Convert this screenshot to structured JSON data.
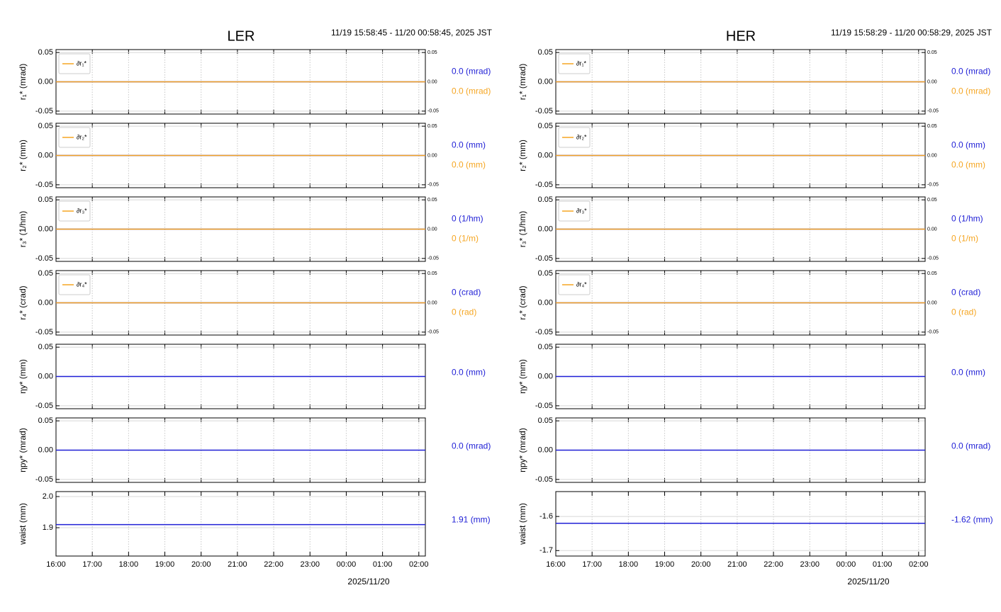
{
  "chart_data": [
    {
      "type": "line",
      "title": "LER",
      "subtitle": "11/19 15:58:45 - 11/20 00:58:45, 2025 JST",
      "xlabel": "2025/11/20",
      "xlim": [
        16,
        26.18
      ],
      "xticks": [
        {
          "value": 16,
          "label": "16:00"
        },
        {
          "value": 17,
          "label": "17:00"
        },
        {
          "value": 18,
          "label": "18:00"
        },
        {
          "value": 19,
          "label": "19:00"
        },
        {
          "value": 20,
          "label": "20:00"
        },
        {
          "value": 21,
          "label": "21:00"
        },
        {
          "value": 22,
          "label": "22:00"
        },
        {
          "value": 23,
          "label": "23:00"
        },
        {
          "value": 24,
          "label": "00:00"
        },
        {
          "value": 25,
          "label": "01:00"
        },
        {
          "value": 26,
          "label": "02:00"
        }
      ],
      "grid": true,
      "legend": "upper left",
      "panels": [
        {
          "ylabel": "r₁* (mrad)",
          "ylim": [
            -0.055,
            0.055
          ],
          "yticks": [
            -0.05,
            {
              "value": 0,
              "label": "0.00"
            },
            0.05
          ],
          "y2lim": [
            -0.055,
            0.055
          ],
          "y2ticks": [
            -0.05,
            {
              "value": 0,
              "label": "0.00"
            },
            0.05
          ],
          "series": [
            {
              "color": "#1f1fd6",
              "x": [
                16,
                26.18
              ],
              "values": [
                0,
                0
              ],
              "label": "0.0 (mrad)"
            },
            {
              "name": "∂r₁*",
              "color": "#f5a623",
              "axis": "y2",
              "x": [
                16,
                26.18
              ],
              "values": [
                0,
                0
              ],
              "label": "0.0 (mrad)"
            }
          ]
        },
        {
          "ylabel": "r₂* (mm)",
          "ylim": [
            -0.055,
            0.055
          ],
          "yticks": [
            -0.05,
            {
              "value": 0,
              "label": "0.00"
            },
            0.05
          ],
          "y2lim": [
            -0.055,
            0.055
          ],
          "y2ticks": [
            -0.05,
            {
              "value": 0,
              "label": "0.00"
            },
            0.05
          ],
          "series": [
            {
              "color": "#1f1fd6",
              "x": [
                16,
                26.18
              ],
              "values": [
                0,
                0
              ],
              "label": "0.0 (mm)"
            },
            {
              "name": "∂r₂*",
              "color": "#f5a623",
              "axis": "y2",
              "x": [
                16,
                26.18
              ],
              "values": [
                0,
                0
              ],
              "label": "0.0 (mm)"
            }
          ]
        },
        {
          "ylabel": "r₃* (1/hm)",
          "ylim": [
            -0.055,
            0.055
          ],
          "yticks": [
            -0.05,
            {
              "value": 0,
              "label": "0.00"
            },
            0.05
          ],
          "y2lim": [
            -0.055,
            0.055
          ],
          "y2ticks": [
            -0.05,
            {
              "value": 0,
              "label": "0.00"
            },
            0.05
          ],
          "series": [
            {
              "color": "#1f1fd6",
              "x": [
                16,
                26.18
              ],
              "values": [
                0,
                0
              ],
              "label": "0 (1/hm)"
            },
            {
              "name": "∂r₃*",
              "color": "#f5a623",
              "axis": "y2",
              "x": [
                16,
                26.18
              ],
              "values": [
                0,
                0
              ],
              "label": "0 (1/m)"
            }
          ]
        },
        {
          "ylabel": "r₄* (crad)",
          "ylim": [
            -0.055,
            0.055
          ],
          "yticks": [
            -0.05,
            {
              "value": 0,
              "label": "0.00"
            },
            0.05
          ],
          "y2lim": [
            -0.055,
            0.055
          ],
          "y2ticks": [
            -0.05,
            {
              "value": 0,
              "label": "0.00"
            },
            0.05
          ],
          "series": [
            {
              "color": "#1f1fd6",
              "x": [
                16,
                26.18
              ],
              "values": [
                0,
                0
              ],
              "label": "0 (crad)"
            },
            {
              "name": "∂r₄*",
              "color": "#f5a623",
              "axis": "y2",
              "x": [
                16,
                26.18
              ],
              "values": [
                0,
                0
              ],
              "label": "0 (rad)"
            }
          ]
        },
        {
          "ylabel": "ηy* (mm)",
          "ylim": [
            -0.055,
            0.055
          ],
          "yticks": [
            -0.05,
            {
              "value": 0,
              "label": "0.00"
            },
            0.05
          ],
          "series": [
            {
              "color": "#1f1fd6",
              "x": [
                16,
                26.18
              ],
              "values": [
                0,
                0
              ],
              "label": "0.0 (mm)"
            }
          ]
        },
        {
          "ylabel": "ηpy* (mrad)",
          "ylim": [
            -0.055,
            0.055
          ],
          "yticks": [
            -0.05,
            {
              "value": 0,
              "label": "0.00"
            },
            0.05
          ],
          "series": [
            {
              "color": "#1f1fd6",
              "x": [
                16,
                26.18
              ],
              "values": [
                0,
                0
              ],
              "label": "0.0 (mrad)"
            }
          ]
        },
        {
          "ylabel": "waist (mm)",
          "ylim": [
            1.809,
            2.016
          ],
          "yticks": [
            1.9,
            {
              "value": 2,
              "label": "2.0"
            }
          ],
          "series": [
            {
              "color": "#1f1fd6",
              "x": [
                16,
                26.18
              ],
              "values": [
                1.91,
                1.91
              ],
              "label": "1.91 (mm)"
            }
          ]
        }
      ]
    },
    {
      "type": "line",
      "title": "HER",
      "subtitle": "11/19 15:58:29 - 11/20 00:58:29, 2025 JST",
      "xlabel": "2025/11/20",
      "xlim": [
        16,
        26.18
      ],
      "xticks": [
        {
          "value": 16,
          "label": "16:00"
        },
        {
          "value": 17,
          "label": "17:00"
        },
        {
          "value": 18,
          "label": "18:00"
        },
        {
          "value": 19,
          "label": "19:00"
        },
        {
          "value": 20,
          "label": "20:00"
        },
        {
          "value": 21,
          "label": "21:00"
        },
        {
          "value": 22,
          "label": "22:00"
        },
        {
          "value": 23,
          "label": "23:00"
        },
        {
          "value": 24,
          "label": "00:00"
        },
        {
          "value": 25,
          "label": "01:00"
        },
        {
          "value": 26,
          "label": "02:00"
        }
      ],
      "grid": true,
      "legend": "upper left",
      "panels": [
        {
          "ylabel": "r₁* (mrad)",
          "ylim": [
            -0.055,
            0.055
          ],
          "yticks": [
            -0.05,
            {
              "value": 0,
              "label": "0.00"
            },
            0.05
          ],
          "y2lim": [
            -0.055,
            0.055
          ],
          "y2ticks": [
            -0.05,
            {
              "value": 0,
              "label": "0.00"
            },
            0.05
          ],
          "series": [
            {
              "color": "#1f1fd6",
              "x": [
                16,
                26.18
              ],
              "values": [
                0,
                0
              ],
              "label": "0.0 (mrad)"
            },
            {
              "name": "∂r₁*",
              "color": "#f5a623",
              "axis": "y2",
              "x": [
                16,
                26.18
              ],
              "values": [
                0,
                0
              ],
              "label": "0.0 (mrad)"
            }
          ]
        },
        {
          "ylabel": "r₂* (mm)",
          "ylim": [
            -0.055,
            0.055
          ],
          "yticks": [
            -0.05,
            {
              "value": 0,
              "label": "0.00"
            },
            0.05
          ],
          "y2lim": [
            -0.055,
            0.055
          ],
          "y2ticks": [
            -0.05,
            {
              "value": 0,
              "label": "0.00"
            },
            0.05
          ],
          "series": [
            {
              "color": "#1f1fd6",
              "x": [
                16,
                26.18
              ],
              "values": [
                0,
                0
              ],
              "label": "0.0 (mm)"
            },
            {
              "name": "∂r₂*",
              "color": "#f5a623",
              "axis": "y2",
              "x": [
                16,
                26.18
              ],
              "values": [
                0,
                0
              ],
              "label": "0.0 (mm)"
            }
          ]
        },
        {
          "ylabel": "r₃* (1/hm)",
          "ylim": [
            -0.055,
            0.055
          ],
          "yticks": [
            -0.05,
            {
              "value": 0,
              "label": "0.00"
            },
            0.05
          ],
          "y2lim": [
            -0.055,
            0.055
          ],
          "y2ticks": [
            -0.05,
            {
              "value": 0,
              "label": "0.00"
            },
            0.05
          ],
          "series": [
            {
              "color": "#1f1fd6",
              "x": [
                16,
                26.18
              ],
              "values": [
                0,
                0
              ],
              "label": "0 (1/hm)"
            },
            {
              "name": "∂r₃*",
              "color": "#f5a623",
              "axis": "y2",
              "x": [
                16,
                26.18
              ],
              "values": [
                0,
                0
              ],
              "label": "0 (1/m)"
            }
          ]
        },
        {
          "ylabel": "r₄* (crad)",
          "ylim": [
            -0.055,
            0.055
          ],
          "yticks": [
            -0.05,
            {
              "value": 0,
              "label": "0.00"
            },
            0.05
          ],
          "y2lim": [
            -0.055,
            0.055
          ],
          "y2ticks": [
            -0.05,
            {
              "value": 0,
              "label": "0.00"
            },
            0.05
          ],
          "series": [
            {
              "color": "#1f1fd6",
              "x": [
                16,
                26.18
              ],
              "values": [
                0,
                0
              ],
              "label": "0 (crad)"
            },
            {
              "name": "∂r₄*",
              "color": "#f5a623",
              "axis": "y2",
              "x": [
                16,
                26.18
              ],
              "values": [
                0,
                0
              ],
              "label": "0 (rad)"
            }
          ]
        },
        {
          "ylabel": "ηy* (mm)",
          "ylim": [
            -0.055,
            0.055
          ],
          "yticks": [
            -0.05,
            {
              "value": 0,
              "label": "0.00"
            },
            0.05
          ],
          "series": [
            {
              "color": "#1f1fd6",
              "x": [
                16,
                26.18
              ],
              "values": [
                0,
                0
              ],
              "label": "0.0 (mm)"
            }
          ]
        },
        {
          "ylabel": "ηpy* (mrad)",
          "ylim": [
            -0.055,
            0.055
          ],
          "yticks": [
            -0.05,
            {
              "value": 0,
              "label": "0.00"
            },
            0.05
          ],
          "series": [
            {
              "color": "#1f1fd6",
              "x": [
                16,
                26.18
              ],
              "values": [
                0,
                0
              ],
              "label": "0.0 (mrad)"
            }
          ]
        },
        {
          "ylabel": "waist (mm)",
          "ylim": [
            -1.716,
            -1.527
          ],
          "yticks": [
            -1.7,
            -1.6
          ],
          "series": [
            {
              "color": "#1f1fd6",
              "x": [
                16,
                26.18
              ],
              "values": [
                -1.62,
                -1.62
              ],
              "label": "-1.62 (mm)"
            }
          ]
        }
      ]
    }
  ]
}
